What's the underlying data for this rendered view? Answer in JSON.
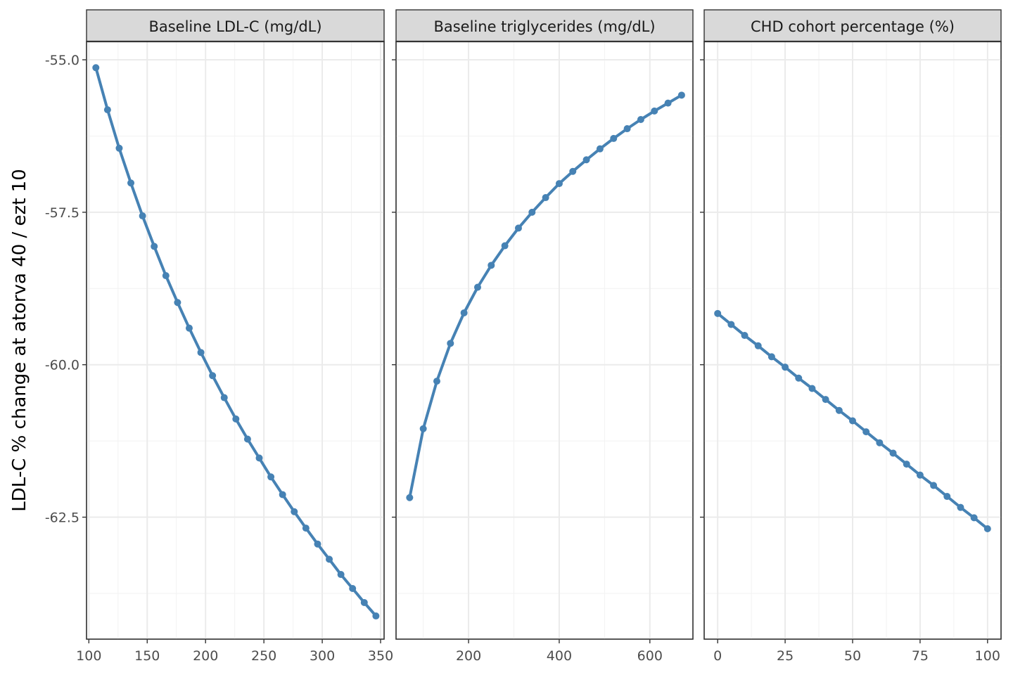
{
  "chart_data": {
    "type": "line",
    "ylabel": "LDL-C % change at atorva 40 / ezt 10",
    "ylim": [
      -64.5,
      -54.7
    ],
    "yticks": [
      -55.0,
      -57.5,
      -60.0,
      -62.5
    ],
    "ytick_labels": [
      "-55.0",
      "-57.5",
      "-60.0",
      "-62.5"
    ],
    "series_color": "#4682B4",
    "panels": [
      {
        "strip": "Baseline LDL-C (mg/dL)",
        "xlim": [
          98,
          353
        ],
        "xticks": [
          100,
          150,
          200,
          250,
          300,
          350
        ],
        "xtick_labels": [
          "100",
          "150",
          "200",
          "250",
          "300",
          "350"
        ],
        "x": [
          106,
          116,
          126,
          136,
          146,
          156,
          166,
          176,
          186,
          196,
          206,
          216,
          226,
          236,
          246,
          256,
          266,
          276,
          286,
          296,
          306,
          316,
          326,
          336,
          346
        ],
        "y": [
          -55.13,
          -55.82,
          -56.45,
          -57.02,
          -57.56,
          -58.06,
          -58.54,
          -58.98,
          -59.4,
          -59.8,
          -60.18,
          -60.54,
          -60.89,
          -61.22,
          -61.53,
          -61.84,
          -62.13,
          -62.41,
          -62.68,
          -62.94,
          -63.19,
          -63.44,
          -63.67,
          -63.9,
          -64.12
        ]
      },
      {
        "strip": "Baseline triglycerides (mg/dL)",
        "xlim": [
          40,
          695
        ],
        "xticks": [
          200,
          400,
          600
        ],
        "xtick_labels": [
          "200",
          "400",
          "600"
        ],
        "x": [
          70,
          100,
          130,
          160,
          190,
          220,
          250,
          280,
          310,
          340,
          370,
          400,
          430,
          460,
          490,
          520,
          550,
          580,
          610,
          640,
          670
        ],
        "y": [
          -62.18,
          -61.05,
          -60.27,
          -59.65,
          -59.15,
          -58.73,
          -58.37,
          -58.05,
          -57.76,
          -57.5,
          -57.26,
          -57.03,
          -56.83,
          -56.64,
          -56.46,
          -56.29,
          -56.13,
          -55.98,
          -55.84,
          -55.71,
          -55.58
        ]
      },
      {
        "strip": "CHD cohort percentage (%)",
        "xlim": [
          -5,
          105
        ],
        "xticks": [
          0,
          25,
          50,
          75,
          100
        ],
        "xtick_labels": [
          "0",
          "25",
          "50",
          "75",
          "100"
        ],
        "x": [
          0,
          5,
          10,
          15,
          20,
          25,
          30,
          35,
          40,
          45,
          50,
          55,
          60,
          65,
          70,
          75,
          80,
          85,
          90,
          95,
          100
        ],
        "y": [
          -59.16,
          -59.34,
          -59.52,
          -59.69,
          -59.87,
          -60.04,
          -60.22,
          -60.39,
          -60.57,
          -60.75,
          -60.92,
          -61.1,
          -61.28,
          -61.45,
          -61.63,
          -61.81,
          -61.98,
          -62.16,
          -62.34,
          -62.51,
          -62.69
        ]
      }
    ]
  }
}
